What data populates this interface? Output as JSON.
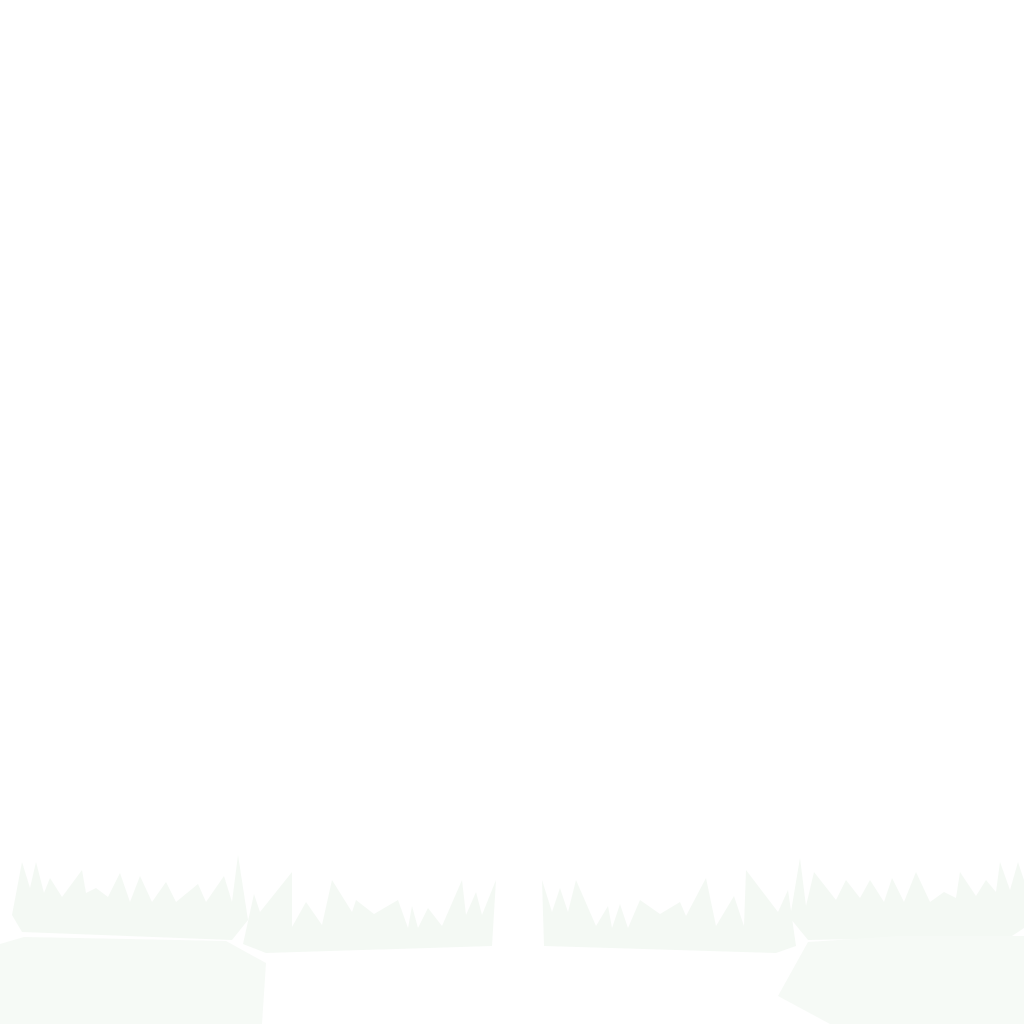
{
  "scene": {
    "background_color": "#ffffff",
    "ground_color": "#f6faf6",
    "grass_color": "#f4f9f4",
    "elements": [
      "grass-tuft-left",
      "grass-tuft-center-left",
      "grass-tuft-center-right",
      "grass-tuft-right",
      "ground-rock-left",
      "ground-rock-right"
    ]
  }
}
